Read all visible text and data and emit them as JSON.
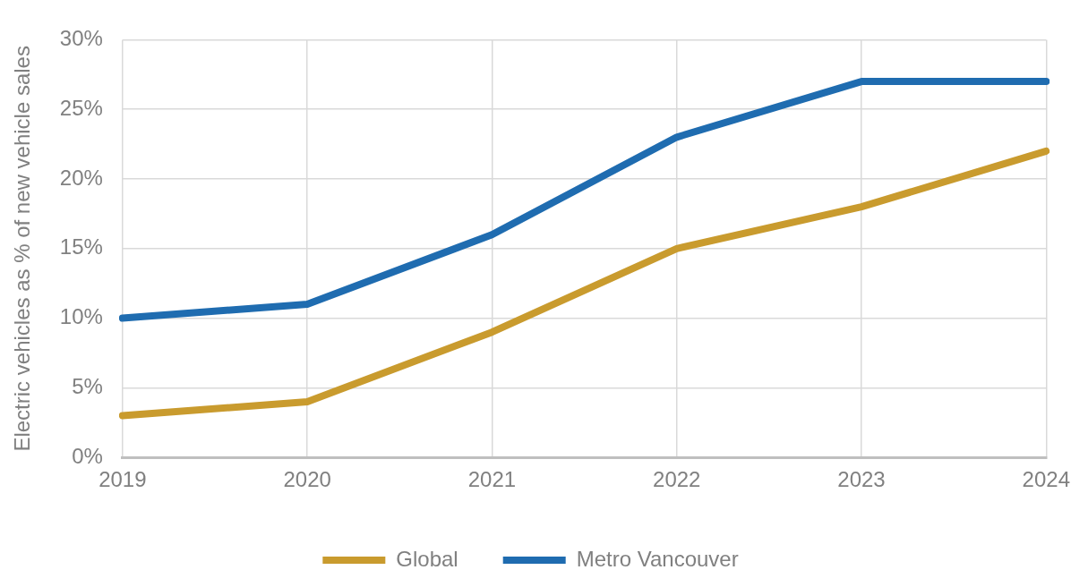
{
  "chart_data": {
    "type": "line",
    "ylabel": "Electric vehicles as % of new vehicle sales",
    "categories": [
      "2019",
      "2020",
      "2021",
      "2022",
      "2023",
      "2024"
    ],
    "series": [
      {
        "name": "Global",
        "color": "#c99b2e",
        "values": [
          3,
          4,
          9,
          15,
          18,
          22
        ]
      },
      {
        "name": "Metro Vancouver",
        "color": "#1f6cb0",
        "values": [
          10,
          11,
          16,
          23,
          27,
          27
        ]
      }
    ],
    "ylim": [
      0,
      30
    ],
    "yticks": [
      {
        "value": 0,
        "label": "0%"
      },
      {
        "value": 5,
        "label": "5%"
      },
      {
        "value": 10,
        "label": "10%"
      },
      {
        "value": 15,
        "label": "15%"
      },
      {
        "value": 20,
        "label": "20%"
      },
      {
        "value": 25,
        "label": "25%"
      },
      {
        "value": 30,
        "label": "30%"
      }
    ],
    "grid": true,
    "legend": "bottom",
    "marker": "none",
    "line_style": "solid"
  }
}
